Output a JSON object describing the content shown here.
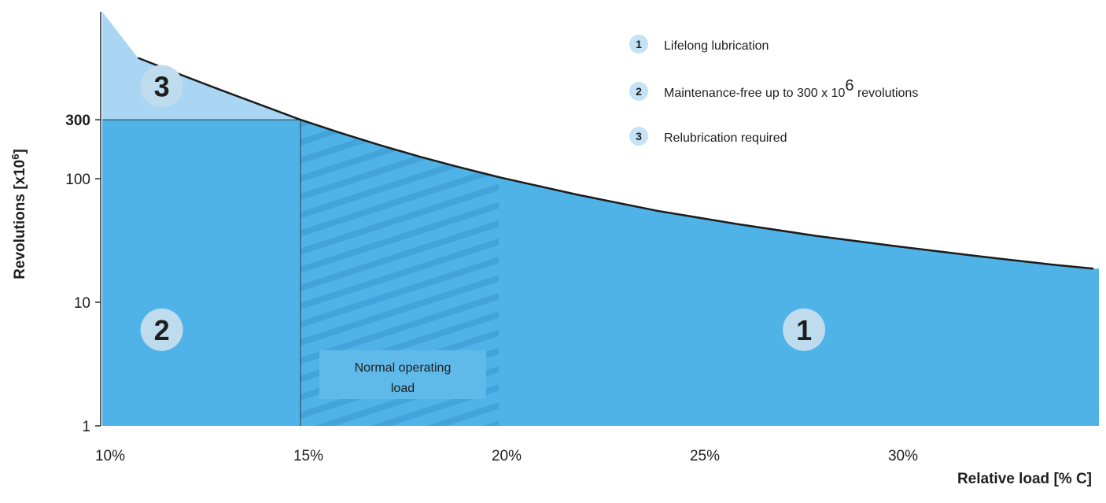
{
  "chart_data": {
    "type": "area",
    "xlabel": "Relative load [% C]",
    "ylabel": "Revolutions [x10",
    "ylabel_sup": "6",
    "ylabel_end": "]",
    "y_scale": "log",
    "xlim": [
      10,
      35
    ],
    "ylim": [
      1,
      1000
    ],
    "x_ticks": [
      {
        "value": 10,
        "label": "10%"
      },
      {
        "value": 15,
        "label": "15%"
      },
      {
        "value": 20,
        "label": "20%"
      },
      {
        "value": 25,
        "label": "25%"
      },
      {
        "value": 30,
        "label": "30%"
      }
    ],
    "y_ticks": [
      {
        "value": 1,
        "label": "1",
        "bold": false
      },
      {
        "value": 10,
        "label": "10",
        "bold": false
      },
      {
        "value": 100,
        "label": "100",
        "bold": false
      },
      {
        "value": 300,
        "label": "300",
        "bold": true
      }
    ],
    "curve": {
      "x": [
        10.9,
        12,
        13,
        14,
        15,
        16,
        17,
        18,
        19,
        20,
        22,
        24,
        26,
        28,
        30,
        32,
        34,
        35
      ],
      "y": [
        950,
        690,
        520,
        395,
        300,
        235,
        187,
        151,
        124,
        103,
        74,
        55,
        43,
        34.5,
        28.5,
        23.8,
        20.1,
        18.7
      ]
    },
    "threshold": {
      "y": 300,
      "x": 15
    },
    "normal_operating_range": [
      15,
      20
    ],
    "regions": [
      {
        "id": "1",
        "label": "Lifelong lubrication",
        "marker_x": 27.7,
        "marker_y": 6
      },
      {
        "id": "2",
        "label_pre": "Maintenance-free up to 300 x 10",
        "label_sup": "6",
        "label_post": " revolutions",
        "marker_x": 11.5,
        "marker_y": 6
      },
      {
        "id": "3",
        "label": "Relubrication required",
        "marker_x": 11.5,
        "marker_y": 560
      }
    ],
    "annotation": {
      "line1": "Normal operating",
      "line2": "load"
    },
    "colors": {
      "fill_main": "#4fb3e8",
      "fill_relub": "#a9d6f3",
      "curve": "#1c1c1c",
      "marker_big": "#bfdcee",
      "marker_small": "#c4e3f6",
      "hatch": "#3f9fd6",
      "annotation_box": "#5fbaea"
    }
  }
}
